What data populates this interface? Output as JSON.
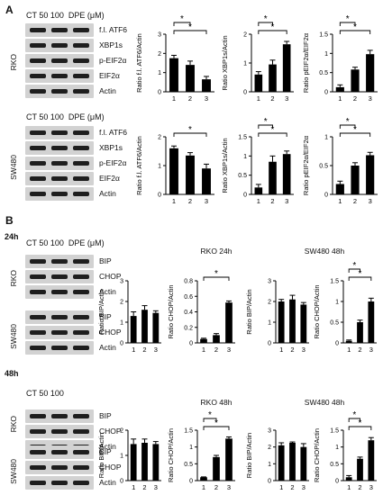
{
  "panels": {
    "a": "A",
    "b": "B"
  },
  "blot_header": {
    "conc": "CT 50 100",
    "unit": "DPE (μM)"
  },
  "panel_a": {
    "rko": {
      "cell": "RKO",
      "rows": [
        "f.l. ATF6",
        "XBP1s",
        "p-EIF2α",
        "EIF2α",
        "Actin"
      ]
    },
    "sw480": {
      "cell": "SW480",
      "rows": [
        "f.l. ATF6",
        "XBP1s",
        "p-EIF2α",
        "EIF2α",
        "Actin"
      ]
    }
  },
  "panel_b": {
    "time_24": "24h",
    "time_48": "48h",
    "rko_24": {
      "cell": "RKO",
      "rows": [
        "BIP",
        "CHOP",
        "Actin"
      ]
    },
    "sw480_24": {
      "cell": "SW480",
      "rows": [
        "BIP",
        "CHOP",
        "Actin"
      ]
    },
    "rko_48": {
      "cell": "RKO",
      "rows": [
        "BIP",
        "CHOP",
        "Actin"
      ]
    },
    "sw480_48": {
      "cell": "SW480",
      "rows": [
        "BIP",
        "CHOP",
        "Actin"
      ]
    }
  },
  "colors": {
    "bar": "#000000",
    "blot_bg": "#d2d2d2",
    "band": "#1e1e1e"
  },
  "chart_data": [
    {
      "type": "bar",
      "categories": [
        "1",
        "2",
        "3"
      ],
      "values": [
        1.75,
        1.4,
        0.65
      ],
      "errors": [
        0.15,
        0.2,
        0.15
      ],
      "ylabel": "Ratio f.l. ATF6/Actin",
      "ylim": [
        0,
        3
      ],
      "yticks": [
        0,
        1,
        2,
        3
      ],
      "significance": [
        {
          "from": "1",
          "to": "2",
          "label": "*"
        },
        {
          "from": "1",
          "to": "3",
          "label": "*"
        }
      ]
    },
    {
      "type": "bar",
      "categories": [
        "1",
        "2",
        "3"
      ],
      "values": [
        0.6,
        0.95,
        1.65
      ],
      "errors": [
        0.1,
        0.15,
        0.1
      ],
      "ylabel": "Ratio XBP1s/Actin",
      "ylim": [
        0,
        2
      ],
      "yticks": [
        0,
        1,
        2
      ],
      "significance": [
        {
          "from": "1",
          "to": "2",
          "label": "*"
        },
        {
          "from": "1",
          "to": "3",
          "label": "*"
        }
      ]
    },
    {
      "type": "bar",
      "categories": [
        "1",
        "2",
        "3"
      ],
      "values": [
        0.12,
        0.58,
        0.98
      ],
      "errors": [
        0.06,
        0.06,
        0.1
      ],
      "ylabel": "Ratio pEIF2α/EIF2α",
      "ylim": [
        0,
        1.5
      ],
      "yticks": [
        0,
        0.5,
        1,
        1.5
      ],
      "significance": [
        {
          "from": "1",
          "to": "2",
          "label": "*"
        },
        {
          "from": "1",
          "to": "3",
          "label": "*"
        }
      ]
    },
    {
      "type": "bar",
      "categories": [
        "1",
        "2",
        "3"
      ],
      "values": [
        1.6,
        1.35,
        0.9
      ],
      "errors": [
        0.08,
        0.1,
        0.15
      ],
      "ylabel": "Ratio f.l. ATF6/Actin",
      "ylim": [
        0,
        2
      ],
      "yticks": [
        0,
        1,
        2
      ],
      "significance": [
        {
          "from": "1",
          "to": "3",
          "label": "*"
        }
      ]
    },
    {
      "type": "bar",
      "categories": [
        "1",
        "2",
        "3"
      ],
      "values": [
        0.18,
        0.85,
        1.05
      ],
      "errors": [
        0.08,
        0.15,
        0.08
      ],
      "ylabel": "Ratio XBP1s/Actin",
      "ylim": [
        0,
        1.5
      ],
      "yticks": [
        0,
        0.5,
        1,
        1.5
      ],
      "significance": [
        {
          "from": "1",
          "to": "2",
          "label": "*"
        },
        {
          "from": "1",
          "to": "3",
          "label": "*"
        }
      ]
    },
    {
      "type": "bar",
      "categories": [
        "1",
        "2",
        "3"
      ],
      "values": [
        0.18,
        0.5,
        0.68
      ],
      "errors": [
        0.05,
        0.05,
        0.05
      ],
      "ylabel": "Ratio pEIF2α/EIF2α",
      "ylim": [
        0,
        1
      ],
      "yticks": [
        0,
        0.5,
        1
      ],
      "significance": [
        {
          "from": "1",
          "to": "2",
          "label": "*"
        },
        {
          "from": "1",
          "to": "3",
          "label": "*"
        }
      ]
    },
    {
      "type": "bar",
      "categories": [
        "1",
        "2",
        "3"
      ],
      "values": [
        1.3,
        1.6,
        1.45
      ],
      "errors": [
        0.2,
        0.2,
        0.1
      ],
      "ylabel": "Ratio BIP/Actin",
      "ylim": [
        0,
        3
      ],
      "yticks": [
        0,
        1,
        2,
        3
      ],
      "significance": []
    },
    {
      "type": "bar",
      "categories": [
        "1",
        "2",
        "3"
      ],
      "values": [
        0.05,
        0.1,
        0.52
      ],
      "errors": [
        0.01,
        0.02,
        0.02
      ],
      "ylabel": "Ratio CHOP/Actin",
      "ylim": [
        0,
        0.8
      ],
      "yticks": [
        0,
        0.2,
        0.4,
        0.6,
        0.8
      ],
      "title": "RKO 24h",
      "significance": [
        {
          "from": "1",
          "to": "3",
          "label": "*"
        }
      ]
    },
    {
      "type": "bar",
      "categories": [
        "1",
        "2",
        "3"
      ],
      "values": [
        2.0,
        2.1,
        1.85
      ],
      "errors": [
        0.1,
        0.2,
        0.1
      ],
      "ylabel": "Ratio BIP/Actin",
      "ylim": [
        0,
        3
      ],
      "yticks": [
        0,
        1,
        2,
        3
      ],
      "significance": []
    },
    {
      "type": "bar",
      "categories": [
        "1",
        "2",
        "3"
      ],
      "values": [
        0.05,
        0.5,
        1.0
      ],
      "errors": [
        0.02,
        0.05,
        0.08
      ],
      "ylabel": "Ratio CHOP/Actin",
      "ylim": [
        0,
        1.5
      ],
      "yticks": [
        0,
        0.5,
        1,
        1.5
      ],
      "title": "SW480 48h",
      "significance": [
        {
          "from": "1",
          "to": "2",
          "label": "*"
        },
        {
          "from": "1",
          "to": "3",
          "label": "*"
        }
      ]
    },
    {
      "type": "bar",
      "categories": [
        "1",
        "2",
        "3"
      ],
      "values": [
        1.45,
        1.5,
        1.45
      ],
      "errors": [
        0.2,
        0.15,
        0.1
      ],
      "ylabel": "Ratio BIP/Actin",
      "ylim": [
        0,
        2
      ],
      "yticks": [
        0,
        1,
        2
      ],
      "significance": []
    },
    {
      "type": "bar",
      "categories": [
        "1",
        "2",
        "3"
      ],
      "values": [
        0.1,
        0.7,
        1.25
      ],
      "errors": [
        0.01,
        0.05,
        0.05
      ],
      "ylabel": "Ratio CHOP/Actin",
      "ylim": [
        0,
        1.5
      ],
      "yticks": [
        0,
        0.5,
        1,
        1.5
      ],
      "title": "RKO 48h",
      "significance": [
        {
          "from": "1",
          "to": "2",
          "label": "*"
        },
        {
          "from": "1",
          "to": "3",
          "label": "*"
        }
      ]
    },
    {
      "type": "bar",
      "categories": [
        "1",
        "2",
        "3"
      ],
      "values": [
        2.1,
        2.25,
        2.0
      ],
      "errors": [
        0.15,
        0.05,
        0.2
      ],
      "ylabel": "Ratio BIP/Actin",
      "ylim": [
        0,
        3
      ],
      "yticks": [
        0,
        1,
        2,
        3
      ],
      "significance": []
    },
    {
      "type": "bar",
      "categories": [
        "1",
        "2",
        "3"
      ],
      "values": [
        0.1,
        0.65,
        1.2
      ],
      "errors": [
        0.05,
        0.05,
        0.08
      ],
      "ylabel": "Ratio CHOP/Actin",
      "ylim": [
        0,
        1.5
      ],
      "yticks": [
        0,
        0.5,
        1,
        1.5
      ],
      "title": "SW480 48h",
      "significance": [
        {
          "from": "1",
          "to": "2",
          "label": "*"
        },
        {
          "from": "1",
          "to": "3",
          "label": "*"
        }
      ]
    }
  ]
}
